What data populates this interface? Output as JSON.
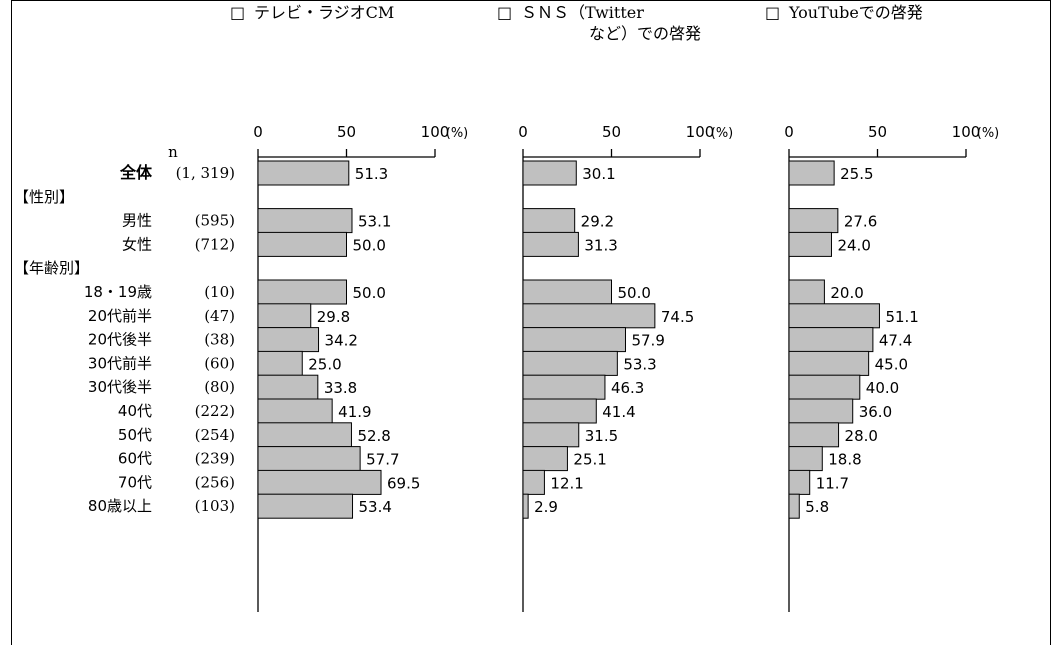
{
  "chart_data": {
    "type": "bar",
    "orientation": "horizontal",
    "n_header": "n",
    "unit_label": "(%)",
    "xlim": [
      0,
      100
    ],
    "x_ticks": [
      "0",
      "50",
      "100"
    ],
    "rows": [
      {
        "label": "全体",
        "n": "(1, 319)",
        "bold": true,
        "section": false
      },
      {
        "label": "【性別】",
        "n": "",
        "bold": false,
        "section": true
      },
      {
        "label": "男性",
        "n": "(595)",
        "bold": false,
        "section": false
      },
      {
        "label": "女性",
        "n": "(712)",
        "bold": false,
        "section": false
      },
      {
        "label": "【年齢別】",
        "n": "",
        "bold": false,
        "section": true
      },
      {
        "label": "18・19歳",
        "n": "(10)",
        "bold": false,
        "section": false
      },
      {
        "label": "20代前半",
        "n": "(47)",
        "bold": false,
        "section": false
      },
      {
        "label": "20代後半",
        "n": "(38)",
        "bold": false,
        "section": false
      },
      {
        "label": "30代前半",
        "n": "(60)",
        "bold": false,
        "section": false
      },
      {
        "label": "30代後半",
        "n": "(80)",
        "bold": false,
        "section": false
      },
      {
        "label": "40代",
        "n": "(222)",
        "bold": false,
        "section": false
      },
      {
        "label": "50代",
        "n": "(254)",
        "bold": false,
        "section": false
      },
      {
        "label": "60代",
        "n": "(239)",
        "bold": false,
        "section": false
      },
      {
        "label": "70代",
        "n": "(256)",
        "bold": false,
        "section": false
      },
      {
        "label": "80歳以上",
        "n": "(103)",
        "bold": false,
        "section": false
      }
    ],
    "series": [
      {
        "legend": [
          "テレビ・ラジオCM"
        ],
        "values": [
          51.3,
          null,
          53.1,
          50.0,
          null,
          50.0,
          29.8,
          34.2,
          25.0,
          33.8,
          41.9,
          52.8,
          57.7,
          69.5,
          53.4
        ]
      },
      {
        "legend": [
          "ＳＮＳ（Twitter",
          "など）での啓発"
        ],
        "values": [
          30.1,
          null,
          29.2,
          31.3,
          null,
          50.0,
          74.5,
          57.9,
          53.3,
          46.3,
          41.4,
          31.5,
          25.1,
          12.1,
          2.9
        ]
      },
      {
        "legend": [
          "YouTubeでの啓発"
        ],
        "values": [
          25.5,
          null,
          27.6,
          24.0,
          null,
          20.0,
          51.1,
          47.4,
          45.0,
          40.0,
          36.0,
          28.0,
          18.8,
          11.7,
          5.8
        ]
      }
    ],
    "colors": {
      "bar_fill": "#c0c0c0",
      "bar_stroke": "#000000"
    },
    "legend_marker": "□"
  }
}
